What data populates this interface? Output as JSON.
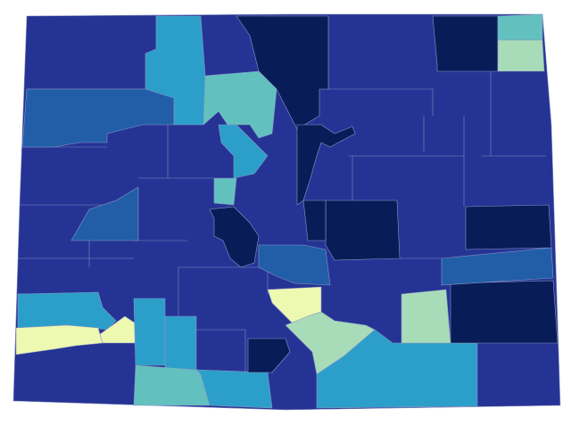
{
  "map": {
    "type": "choropleth",
    "palette": [
      "#081d58",
      "#253494",
      "#225ea8",
      "#2b9fc9",
      "#62c1bf",
      "#a8dcb9",
      "#edf8b1"
    ]
  }
}
